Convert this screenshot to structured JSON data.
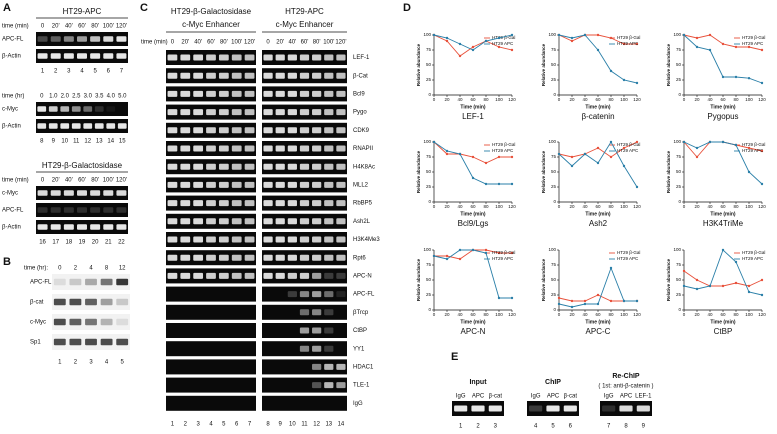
{
  "panel_a": {
    "label": "A",
    "blocks": [
      {
        "title": "HT29-APC",
        "time_label": "time (min)",
        "times": [
          "0",
          "20'",
          "40'",
          "60'",
          "80'",
          "100'",
          "120'"
        ],
        "rows": [
          "APC-FL",
          "β-Actin"
        ],
        "lanes": [
          "1",
          "2",
          "3",
          "4",
          "5",
          "6",
          "7"
        ]
      },
      {
        "time_label": "time (hr)",
        "times": [
          "0",
          "1.0",
          "2.0",
          "2.5",
          "3.0",
          "3.5",
          "4.0",
          "5.0"
        ],
        "rows": [
          "c-Myc",
          "β-Actin"
        ],
        "lanes": [
          "8",
          "9",
          "10",
          "11",
          "12",
          "13",
          "14",
          "15"
        ]
      },
      {
        "title": "HT29-β-Galactosidase",
        "time_label": "time (min)",
        "times": [
          "0",
          "20'",
          "40'",
          "60'",
          "80'",
          "100'",
          "120'"
        ],
        "rows": [
          "c-Myc",
          "APC-FL",
          "β-Actin"
        ],
        "lanes": [
          "16",
          "17",
          "18",
          "19",
          "20",
          "21",
          "22"
        ]
      }
    ]
  },
  "panel_b": {
    "label": "B",
    "time_label": "time (hr):",
    "times": [
      "0",
      "2",
      "4",
      "8",
      "12"
    ],
    "rows": [
      "APC-FL",
      "β-cat",
      "c-Myc",
      "Sp1"
    ],
    "lanes": [
      "1",
      "2",
      "3",
      "4",
      "5"
    ]
  },
  "panel_c": {
    "label": "C",
    "time_label": "time (min)",
    "groups": [
      {
        "title": "HT29-β-Galactosidase",
        "subtitle": "c-Myc Enhancer",
        "times": [
          "0",
          "20'",
          "40'",
          "60'",
          "80'",
          "100'",
          "120'"
        ]
      },
      {
        "title": "HT29-APC",
        "subtitle": "c-Myc Enhancer",
        "times": [
          "0",
          "20'",
          "40'",
          "60'",
          "80'",
          "100'",
          "120'"
        ]
      }
    ],
    "rows": [
      "LEF-1",
      "β-Cat",
      "Bcl9",
      "Pygo",
      "CDK9",
      "RNAPII",
      "H4K8Ac",
      "MLL2",
      "RbBP5",
      "Ash2L",
      "H3K4Me3",
      "Rpt6",
      "APC-N",
      "APC-FL",
      "βTrcp",
      "CtBP",
      "YY1",
      "HDAC1",
      "TLE-1",
      "IgG"
    ],
    "lanes": [
      "1",
      "2",
      "3",
      "4",
      "5",
      "6",
      "7",
      "8",
      "9",
      "10",
      "11",
      "12",
      "13",
      "14"
    ]
  },
  "panel_d": {
    "label": "D",
    "charts": [
      {
        "type": "line",
        "title": "LEF-1",
        "x": [
          0,
          20,
          40,
          60,
          80,
          100,
          120
        ],
        "xlim": [
          0,
          120
        ],
        "ylim": [
          0,
          100
        ],
        "xticks": [
          0,
          20,
          40,
          60,
          80,
          100,
          120
        ],
        "yticks": [
          0,
          25,
          50,
          75,
          100
        ],
        "xlabel": "Time (min)",
        "ylabel": "Relative abundance",
        "series": [
          {
            "name": "HT29 β-Gal",
            "color": "#e8503a",
            "values": [
              100,
              90,
              65,
              80,
              90,
              80,
              75
            ]
          },
          {
            "name": "HT29 APC",
            "color": "#2a7fa8",
            "values": [
              100,
              95,
              85,
              75,
              90,
              95,
              100
            ]
          }
        ]
      },
      {
        "type": "line",
        "title": "β-catenin",
        "x": [
          0,
          20,
          40,
          60,
          80,
          100,
          120
        ],
        "xlim": [
          0,
          120
        ],
        "ylim": [
          0,
          100
        ],
        "xticks": [
          0,
          20,
          40,
          60,
          80,
          100,
          120
        ],
        "yticks": [
          0,
          25,
          50,
          75,
          100
        ],
        "xlabel": "Time (min)",
        "ylabel": "Relative abundance",
        "series": [
          {
            "name": "HT29 β-Gal",
            "color": "#e8503a",
            "values": [
              100,
              90,
              100,
              100,
              95,
              85,
              85
            ]
          },
          {
            "name": "HT29 APC",
            "color": "#2a7fa8",
            "values": [
              100,
              95,
              100,
              75,
              40,
              25,
              20
            ]
          }
        ]
      },
      {
        "type": "line",
        "title": "Pygopus",
        "x": [
          0,
          20,
          40,
          60,
          80,
          100,
          120
        ],
        "xlim": [
          0,
          120
        ],
        "ylim": [
          0,
          100
        ],
        "xticks": [
          0,
          20,
          40,
          60,
          80,
          100,
          120
        ],
        "yticks": [
          0,
          25,
          50,
          75,
          100
        ],
        "xlabel": "Time (min)",
        "ylabel": "Relative abundance",
        "series": [
          {
            "name": "HT29 β-Gal",
            "color": "#e8503a",
            "values": [
              100,
              95,
              100,
              85,
              80,
              80,
              75
            ]
          },
          {
            "name": "HT29 APC",
            "color": "#2a7fa8",
            "values": [
              100,
              80,
              75,
              30,
              30,
              28,
              20
            ]
          }
        ]
      },
      {
        "type": "line",
        "title": "Bcl9/Lgs",
        "x": [
          0,
          20,
          40,
          60,
          80,
          100,
          120
        ],
        "xlim": [
          0,
          120
        ],
        "ylim": [
          0,
          100
        ],
        "xticks": [
          0,
          20,
          40,
          60,
          80,
          100,
          120
        ],
        "yticks": [
          0,
          25,
          50,
          75,
          100
        ],
        "xlabel": "Time (min)",
        "ylabel": "Relative abundance",
        "series": [
          {
            "name": "HT29 β-Gal",
            "color": "#e8503a",
            "values": [
              100,
              80,
              80,
              75,
              65,
              75,
              75
            ]
          },
          {
            "name": "HT29 APC",
            "color": "#2a7fa8",
            "values": [
              100,
              85,
              80,
              40,
              30,
              30,
              30
            ]
          }
        ]
      },
      {
        "type": "line",
        "title": "Ash2",
        "x": [
          0,
          20,
          40,
          60,
          80,
          100,
          120
        ],
        "xlim": [
          0,
          120
        ],
        "ylim": [
          0,
          100
        ],
        "xticks": [
          0,
          20,
          40,
          60,
          80,
          100,
          120
        ],
        "yticks": [
          0,
          25,
          50,
          75,
          100
        ],
        "xlabel": "Time (min)",
        "ylabel": "Relative abundance",
        "series": [
          {
            "name": "HT29 β-Gal",
            "color": "#e8503a",
            "values": [
              80,
              75,
              80,
              90,
              75,
              90,
              100
            ]
          },
          {
            "name": "HT29 APC",
            "color": "#2a7fa8",
            "values": [
              80,
              60,
              80,
              65,
              100,
              60,
              25
            ]
          }
        ]
      },
      {
        "type": "line",
        "title": "H3K4TriMe",
        "x": [
          0,
          20,
          40,
          60,
          80,
          100,
          120
        ],
        "xlim": [
          0,
          120
        ],
        "ylim": [
          0,
          100
        ],
        "xticks": [
          0,
          20,
          40,
          60,
          80,
          100,
          120
        ],
        "yticks": [
          0,
          25,
          50,
          75,
          100
        ],
        "xlabel": "Time (min)",
        "ylabel": "Relative abundance",
        "series": [
          {
            "name": "HT29 β-Gal",
            "color": "#e8503a",
            "values": [
              100,
              75,
              100,
              100,
              95,
              90,
              85
            ]
          },
          {
            "name": "HT29 APC",
            "color": "#2a7fa8",
            "values": [
              100,
              90,
              100,
              100,
              95,
              50,
              30
            ]
          }
        ]
      },
      {
        "type": "line",
        "title": "APC-N",
        "x": [
          0,
          20,
          40,
          60,
          80,
          100,
          120
        ],
        "xlim": [
          0,
          120
        ],
        "ylim": [
          0,
          100
        ],
        "xticks": [
          0,
          20,
          40,
          60,
          80,
          100,
          120
        ],
        "yticks": [
          0,
          25,
          50,
          75,
          100
        ],
        "xlabel": "Time (min)",
        "ylabel": "Relative abundance",
        "series": [
          {
            "name": "HT29 β-Gal",
            "color": "#e8503a",
            "values": [
              90,
              90,
              85,
              100,
              100,
              95,
              95
            ]
          },
          {
            "name": "HT29 APC",
            "color": "#2a7fa8",
            "values": [
              90,
              85,
              100,
              100,
              95,
              20,
              20
            ]
          }
        ]
      },
      {
        "type": "line",
        "title": "APC-C",
        "x": [
          0,
          20,
          40,
          60,
          80,
          100,
          120
        ],
        "xlim": [
          0,
          120
        ],
        "ylim": [
          0,
          100
        ],
        "xticks": [
          0,
          20,
          40,
          60,
          80,
          100,
          120
        ],
        "yticks": [
          0,
          25,
          50,
          75,
          100
        ],
        "xlabel": "Time (min)",
        "ylabel": "Relative abundance",
        "series": [
          {
            "name": "HT29 β-Gal",
            "color": "#e8503a",
            "values": [
              20,
              15,
              15,
              25,
              15,
              15,
              15
            ]
          },
          {
            "name": "HT29 APC",
            "color": "#2a7fa8",
            "values": [
              10,
              5,
              10,
              10,
              70,
              15,
              15
            ]
          }
        ]
      },
      {
        "type": "line",
        "title": "CtBP",
        "x": [
          0,
          20,
          40,
          60,
          80,
          100,
          120
        ],
        "xlim": [
          0,
          120
        ],
        "ylim": [
          0,
          100
        ],
        "xticks": [
          0,
          20,
          40,
          60,
          80,
          100,
          120
        ],
        "yticks": [
          0,
          25,
          50,
          75,
          100
        ],
        "xlabel": "Time (min)",
        "ylabel": "Relative abundance",
        "series": [
          {
            "name": "HT29 β-Gal",
            "color": "#e8503a",
            "values": [
              65,
              50,
              40,
              40,
              45,
              40,
              50
            ]
          },
          {
            "name": "HT29 APC",
            "color": "#2a7fa8",
            "values": [
              40,
              35,
              40,
              100,
              80,
              30,
              25
            ]
          }
        ]
      }
    ]
  },
  "panel_e": {
    "label": "E",
    "groups": [
      {
        "title": "Input",
        "lanes": [
          "IgG",
          "APC",
          "β-cat"
        ],
        "numbers": [
          "1",
          "2",
          "3"
        ]
      },
      {
        "title": "ChIP",
        "lanes": [
          "IgG",
          "APC",
          "β-cat"
        ],
        "numbers": [
          "4",
          "5",
          "6"
        ]
      },
      {
        "title": "Re-ChIP",
        "subtitle": "( 1st: anti-β-catenin )",
        "lanes": [
          "IgG",
          "APC",
          "LEF-1"
        ],
        "numbers": [
          "7",
          "8",
          "9"
        ]
      }
    ]
  }
}
